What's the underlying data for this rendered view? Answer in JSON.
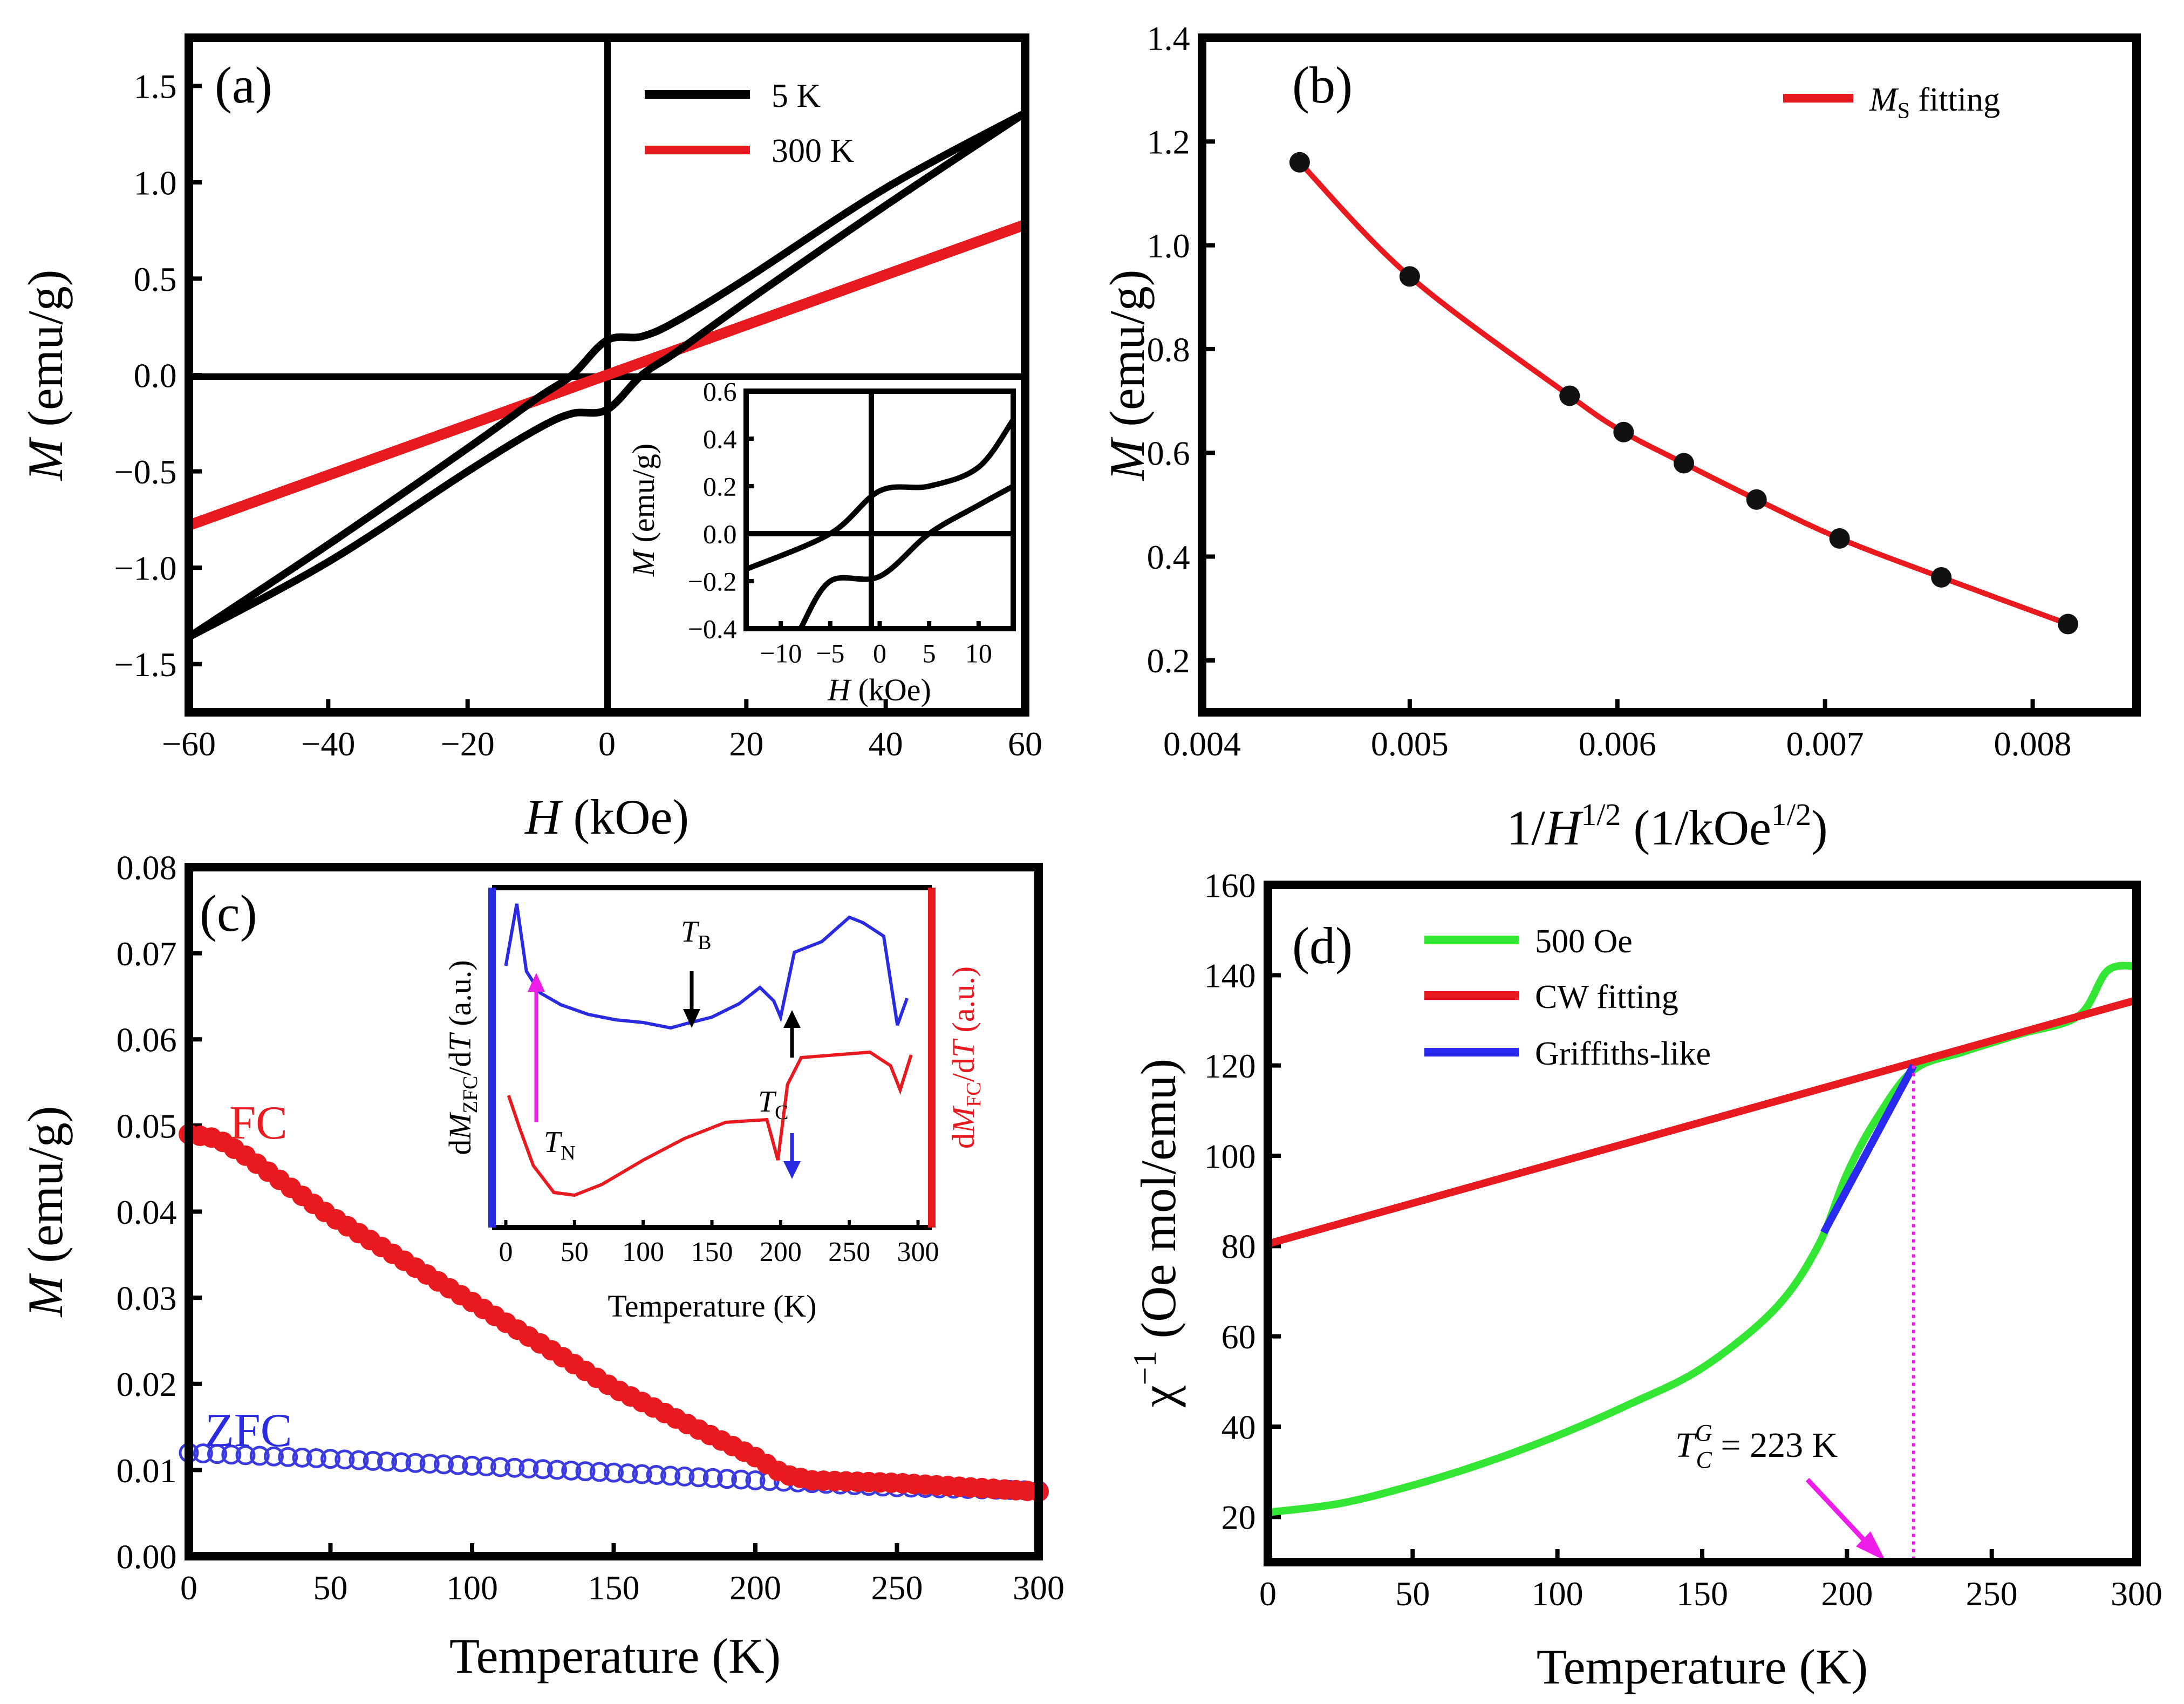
{
  "chart_data": [
    {
      "id": "a",
      "type": "line",
      "panel_label": "(a)",
      "xlabel": "H (kOe)",
      "ylabel": "M (emu/g)",
      "xlim": [
        -60,
        60
      ],
      "ylim": [
        -1.75,
        1.75
      ],
      "xticks": [
        -60,
        -40,
        -20,
        0,
        20,
        40,
        60
      ],
      "xtick_labels": [
        "−60",
        "−40",
        "−20",
        "0",
        "20",
        "40",
        "60"
      ],
      "yticks": [
        -1.5,
        -1.0,
        -0.5,
        0.0,
        0.5,
        1.0,
        1.5
      ],
      "ytick_labels": [
        "−1.5",
        "−1.0",
        "−0.5",
        "0.0",
        "0.5",
        "1.0",
        "1.5"
      ],
      "series": [
        {
          "name": "5 K",
          "color": "#000000",
          "x": [
            -60,
            -40,
            -20,
            -10,
            -5,
            0,
            5,
            10,
            20,
            40,
            60
          ],
          "y_ascending": [
            -1.36,
            -0.97,
            -0.5,
            -0.28,
            -0.2,
            -0.18,
            0.0,
            0.12,
            0.38,
            0.88,
            1.36
          ],
          "y_descending": [
            -1.36,
            -0.88,
            -0.38,
            -0.12,
            0.0,
            0.18,
            0.2,
            0.28,
            0.5,
            0.97,
            1.36
          ]
        },
        {
          "name": "300 K",
          "color": "#e8191f",
          "x": [
            -60,
            60
          ],
          "y": [
            -0.78,
            0.78
          ]
        }
      ],
      "inset": {
        "xlabel": "H (kOe)",
        "ylabel": "M (emu/g)",
        "xlim": [
          -13.5,
          13.5
        ],
        "ylim": [
          -0.4,
          0.6
        ],
        "xticks": [
          -10,
          -5,
          0,
          5,
          10
        ],
        "xtick_labels": [
          "−10",
          "−5",
          "0",
          "5",
          "10"
        ],
        "yticks": [
          -0.4,
          -0.2,
          0.0,
          0.2,
          0.4,
          0.6
        ],
        "ytick_labels": [
          "−0.4",
          "−0.2",
          "0.0",
          "0.2",
          "0.4",
          "0.6"
        ]
      }
    },
    {
      "id": "b",
      "type": "scatter",
      "panel_label": "(b)",
      "xlabel": "1/H^1/2 (1/kOe^1/2)",
      "ylabel": "M (emu/g)",
      "xlim": [
        0.004,
        0.0085
      ],
      "ylim": [
        0.1,
        1.4
      ],
      "xticks": [
        0.004,
        0.005,
        0.006,
        0.007,
        0.008
      ],
      "xtick_labels": [
        "0.004",
        "0.005",
        "0.006",
        "0.007",
        "0.008"
      ],
      "yticks": [
        0.2,
        0.4,
        0.6,
        0.8,
        1.0,
        1.2,
        1.4
      ],
      "ytick_labels": [
        "0.2",
        "0.4",
        "0.6",
        "0.8",
        "1.0",
        "1.2",
        "1.4"
      ],
      "points": {
        "x": [
          0.00447,
          0.005,
          0.00577,
          0.00603,
          0.00632,
          0.00667,
          0.00707,
          0.00756,
          0.00817
        ],
        "y": [
          1.16,
          0.94,
          0.71,
          0.64,
          0.58,
          0.51,
          0.435,
          0.36,
          0.27
        ]
      },
      "fit": {
        "name": "M_S fitting",
        "color": "#e8191f"
      }
    },
    {
      "id": "c",
      "type": "line",
      "panel_label": "(c)",
      "xlabel": "Temperature (K)",
      "ylabel": "M (emu/g)",
      "xlim": [
        0,
        300
      ],
      "ylim": [
        0,
        0.08
      ],
      "xticks": [
        0,
        50,
        100,
        150,
        200,
        250,
        300
      ],
      "xtick_labels": [
        "0",
        "50",
        "100",
        "150",
        "200",
        "250",
        "300"
      ],
      "yticks": [
        0,
        0.01,
        0.02,
        0.03,
        0.04,
        0.05,
        0.06,
        0.07,
        0.08
      ],
      "ytick_labels": [
        "0.00",
        "0.01",
        "0.02",
        "0.03",
        "0.04",
        "0.05",
        "0.06",
        "0.07",
        "0.08"
      ],
      "series": [
        {
          "name": "FC",
          "color": "#e8191f",
          "x": [
            0,
            10,
            20,
            50,
            100,
            150,
            200,
            210,
            220,
            250,
            300
          ],
          "y": [
            0.049,
            0.0485,
            0.0465,
            0.0395,
            0.0295,
            0.0195,
            0.0115,
            0.0095,
            0.0088,
            0.0085,
            0.0075
          ]
        },
        {
          "name": "ZFC",
          "color": "#3a3adf",
          "x": [
            0,
            50,
            100,
            150,
            200,
            250,
            300
          ],
          "y": [
            0.012,
            0.0113,
            0.0105,
            0.0097,
            0.0088,
            0.008,
            0.0076
          ]
        }
      ],
      "inset": {
        "xlabel": "Temperature (K)",
        "ylabel_left": "dM_ZFC/dT (a.u.)",
        "ylabel_right": "dM_FC/dT (a.u.)",
        "xlim": [
          -10,
          310
        ],
        "xticks": [
          0,
          50,
          100,
          150,
          200,
          250,
          300
        ],
        "xtick_labels": [
          "0",
          "50",
          "100",
          "150",
          "200",
          "250",
          "300"
        ],
        "annotations": [
          "T_B",
          "T_N",
          "T_C"
        ]
      }
    },
    {
      "id": "d",
      "type": "line",
      "panel_label": "(d)",
      "xlabel": "Temperature (K)",
      "ylabel": "χ⁻¹ (Oe mol/emu)",
      "xlim": [
        0,
        300
      ],
      "ylim": [
        10,
        160
      ],
      "xticks": [
        0,
        50,
        100,
        150,
        200,
        250,
        300
      ],
      "xtick_labels": [
        "0",
        "50",
        "100",
        "150",
        "200",
        "250",
        "300"
      ],
      "yticks": [
        20,
        40,
        60,
        80,
        100,
        120,
        140,
        160
      ],
      "ytick_labels": [
        "20",
        "40",
        "60",
        "80",
        "100",
        "120",
        "140",
        "160"
      ],
      "series": [
        {
          "name": "500 Oe",
          "color": "#33e633",
          "x": [
            0,
            25,
            50,
            75,
            100,
            125,
            150,
            175,
            190,
            200,
            210,
            223,
            240,
            260,
            280,
            290,
            300
          ],
          "y": [
            21,
            23,
            27,
            32,
            38,
            45,
            53,
            66,
            80,
            96,
            108,
            119,
            123,
            127,
            131,
            141,
            142
          ]
        },
        {
          "name": "CW fitting",
          "color": "#e8191f",
          "x": [
            0,
            300
          ],
          "y": [
            80.5,
            134.5
          ]
        },
        {
          "name": "Griffiths-like",
          "color": "#2a2af0",
          "x": [
            192,
            223
          ],
          "y": [
            83,
            120
          ]
        }
      ],
      "annotation": {
        "label": "T_C^G = 223 K",
        "x": 223
      }
    }
  ],
  "text": {
    "a_panel": "(a)",
    "a_legend_1": "5 K",
    "a_legend_2": "300 K",
    "a_ylabel_var": "M",
    "a_ylabel_unit": " (emu/g)",
    "a_xlabel_var": "H",
    "a_xlabel_unit": " (kOe)",
    "a_in_xlabel_var": "H",
    "a_in_xlabel_unit": " (kOe)",
    "a_in_ylabel_var": "M",
    "a_in_ylabel_unit": " (emu/g)",
    "b_panel": "(b)",
    "b_legend_var": "M",
    "b_legend_sub": "S",
    "b_legend_rest": " fitting",
    "b_ylabel_var": "M",
    "b_ylabel_unit": " (emu/g)",
    "b_xlabel_pre": "1/",
    "b_xlabel_var": "H",
    "b_xlabel_exp": "1/2",
    "b_xlabel_unit": " (1/kOe",
    "b_xlabel_exp2": "1/2",
    "b_xlabel_close": ")",
    "c_panel": "(c)",
    "c_fc": "FC",
    "c_zfc": "ZFC",
    "c_ylabel_var": "M",
    "c_ylabel_unit": " (emu/g)",
    "c_xlabel": "Temperature (K)",
    "c_in_xlabel": "Temperature (K)",
    "c_in_yl_d": "d",
    "c_in_yl_m": "M",
    "c_in_yl_sub": "ZFC",
    "c_in_yl_slash": "/d",
    "c_in_yl_t": "T",
    "c_in_yl_au": " (a.u.)",
    "c_in_yr_d": "d",
    "c_in_yr_m": "M",
    "c_in_yr_sub": "FC",
    "c_in_yr_slash": "/d",
    "c_in_yr_t": "T",
    "c_in_yr_au": " (a.u.)",
    "c_tb": "T",
    "c_tb_sub": "B",
    "c_tn": "T",
    "c_tn_sub": "N",
    "c_tc": "T",
    "c_tc_sub": "C",
    "d_panel": "(d)",
    "d_legend_1": "500 Oe",
    "d_legend_2": "CW fitting",
    "d_legend_3": "Griffiths-like",
    "d_ylabel_chi": "χ",
    "d_ylabel_exp": "−1",
    "d_ylabel_unit": " (Oe mol/emu)",
    "d_xlabel": "Temperature (K)",
    "d_tc_t": "T",
    "d_tc_sup": "G",
    "d_tc_sub": "C",
    "d_tc_val": " = 223 K"
  }
}
